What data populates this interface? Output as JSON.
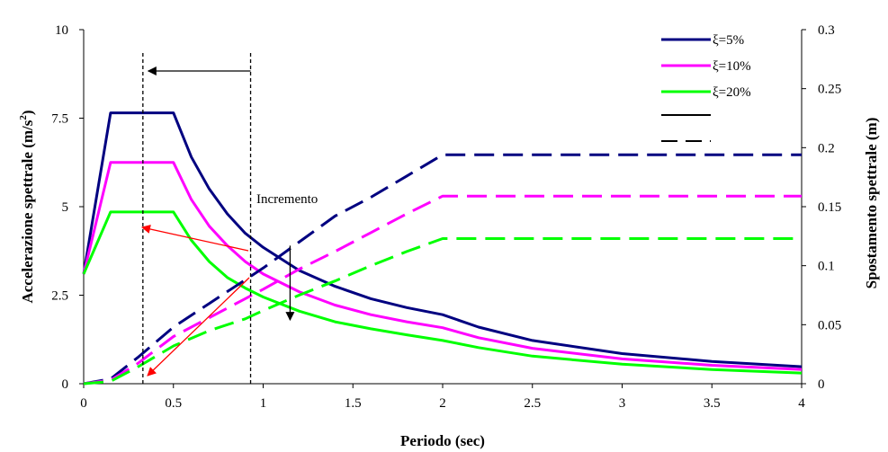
{
  "chart_data": {
    "type": "line",
    "xlabel": "Periodo (sec)",
    "ylabel_left": "Accelerazione spettrale (m/s",
    "ylabel_left_sup": "2",
    "ylabel_left_close": ")",
    "ylabel_right": "Spostamento spettrale (m)",
    "xlim": [
      0,
      4
    ],
    "ylim_left": [
      0,
      10
    ],
    "ylim_right": [
      0,
      0.3
    ],
    "x_ticks": [
      "0",
      "0.5",
      "1",
      "1.5",
      "2",
      "2.5",
      "3",
      "3.5",
      "4"
    ],
    "y_left_ticks": [
      "0",
      "2.5",
      "5",
      "7.5",
      "10"
    ],
    "y_right_ticks": [
      "0",
      "0.05",
      "0.1",
      "0.15",
      "0.2",
      "0.25",
      "0.3"
    ],
    "legend": [
      {
        "label": "ξ=5%",
        "color": "#000080"
      },
      {
        "label": "ξ=10%",
        "color": "#ff00ff"
      },
      {
        "label": "ξ=20%",
        "color": "#00ff00"
      }
    ],
    "annotation": "Incremento",
    "series": [
      {
        "name": "ξ=5%",
        "axis": "left",
        "style": "solid",
        "color": "#000080",
        "x": [
          0,
          0.15,
          0.5,
          0.6,
          0.7,
          0.8,
          0.9,
          1.0,
          1.2,
          1.4,
          1.6,
          1.8,
          2.0,
          2.2,
          2.5,
          3.0,
          3.5,
          4.0
        ],
        "y": [
          3.1,
          7.65,
          7.65,
          6.4,
          5.5,
          4.8,
          4.25,
          3.85,
          3.2,
          2.75,
          2.4,
          2.15,
          1.95,
          1.6,
          1.22,
          0.85,
          0.63,
          0.48
        ]
      },
      {
        "name": "ξ=10%",
        "axis": "left",
        "style": "solid",
        "color": "#ff00ff",
        "x": [
          0,
          0.15,
          0.5,
          0.6,
          0.7,
          0.8,
          0.9,
          1.0,
          1.2,
          1.4,
          1.6,
          1.8,
          2.0,
          2.2,
          2.5,
          3.0,
          3.5,
          4.0
        ],
        "y": [
          3.1,
          6.25,
          6.25,
          5.2,
          4.45,
          3.9,
          3.45,
          3.1,
          2.6,
          2.22,
          1.95,
          1.75,
          1.58,
          1.3,
          1.0,
          0.7,
          0.52,
          0.4
        ]
      },
      {
        "name": "ξ=20%",
        "axis": "left",
        "style": "solid",
        "color": "#00ff00",
        "x": [
          0,
          0.15,
          0.5,
          0.6,
          0.7,
          0.8,
          0.9,
          1.0,
          1.2,
          1.4,
          1.6,
          1.8,
          2.0,
          2.2,
          2.5,
          3.0,
          3.5,
          4.0
        ],
        "y": [
          3.1,
          4.85,
          4.85,
          4.05,
          3.45,
          3.0,
          2.7,
          2.45,
          2.05,
          1.75,
          1.55,
          1.38,
          1.22,
          1.02,
          0.78,
          0.55,
          0.4,
          0.3
        ]
      },
      {
        "name": "ξ=5%",
        "axis": "right",
        "style": "dashed",
        "color": "#000080",
        "x": [
          0,
          0.15,
          0.3,
          0.5,
          0.7,
          0.9,
          1.0,
          1.2,
          1.4,
          1.6,
          1.8,
          2.0,
          2.5,
          3.0,
          3.5,
          4.0
        ],
        "y": [
          0,
          0.004,
          0.022,
          0.048,
          0.068,
          0.088,
          0.098,
          0.12,
          0.142,
          0.158,
          0.176,
          0.194,
          0.194,
          0.194,
          0.194,
          0.194
        ]
      },
      {
        "name": "ξ=10%",
        "axis": "right",
        "style": "dashed",
        "color": "#ff00ff",
        "x": [
          0,
          0.15,
          0.3,
          0.5,
          0.7,
          0.9,
          1.0,
          1.2,
          1.4,
          1.6,
          1.8,
          2.0,
          2.5,
          3.0,
          3.5,
          4.0
        ],
        "y": [
          0,
          0.003,
          0.017,
          0.04,
          0.056,
          0.072,
          0.08,
          0.097,
          0.112,
          0.128,
          0.144,
          0.159,
          0.159,
          0.159,
          0.159,
          0.159
        ]
      },
      {
        "name": "ξ=20%",
        "axis": "right",
        "style": "dashed",
        "color": "#00ff00",
        "x": [
          0,
          0.15,
          0.3,
          0.5,
          0.7,
          0.9,
          1.0,
          1.2,
          1.4,
          1.6,
          1.8,
          2.0,
          2.5,
          3.0,
          3.5,
          4.0
        ],
        "y": [
          0,
          0.002,
          0.014,
          0.032,
          0.045,
          0.055,
          0.062,
          0.075,
          0.087,
          0.1,
          0.112,
          0.123,
          0.123,
          0.123,
          0.123,
          0.123
        ]
      }
    ]
  }
}
